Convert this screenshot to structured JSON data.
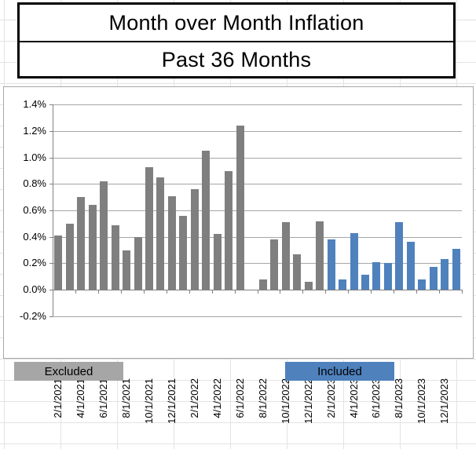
{
  "title": {
    "line1": "Month over Month Inflation",
    "line2": "Past 36 Months"
  },
  "legend": {
    "excluded_label": "Excluded",
    "included_label": "Included"
  },
  "colors": {
    "excluded_bar": "#7f7f7f",
    "included_bar": "#4f81bd",
    "legend_excluded_fill": "#a6a6a6",
    "legend_included_fill": "#4f81bd",
    "gridline": "#a6a6a6",
    "axis": "#808080"
  },
  "chart_data": {
    "type": "bar",
    "title": "Month over Month Inflation — Past 36 Months",
    "xlabel": "",
    "ylabel": "",
    "ylim": [
      -0.2,
      1.4
    ],
    "ytick_step": 0.2,
    "ytick_labels": [
      "1.4%",
      "1.2%",
      "1.0%",
      "0.8%",
      "0.6%",
      "0.4%",
      "0.2%",
      "0.0%",
      "-0.2%"
    ],
    "xtick_labels_shown": [
      "2/1/2021",
      "4/1/2021",
      "6/1/2021",
      "8/1/2021",
      "10/1/2021",
      "12/1/2021",
      "2/1/2022",
      "4/1/2022",
      "6/1/2022",
      "8/1/2022",
      "10/1/2022",
      "12/1/2022",
      "2/1/2023",
      "4/1/2023",
      "6/1/2023",
      "8/1/2023",
      "10/1/2023",
      "12/1/2023"
    ],
    "label_every_n_bars": 2,
    "grid": true,
    "legend_position": "below-as-cells",
    "categories": [
      "2/1/2021",
      "3/1/2021",
      "4/1/2021",
      "5/1/2021",
      "6/1/2021",
      "7/1/2021",
      "8/1/2021",
      "9/1/2021",
      "10/1/2021",
      "11/1/2021",
      "12/1/2021",
      "1/1/2022",
      "2/1/2022",
      "3/1/2022",
      "4/1/2022",
      "5/1/2022",
      "6/1/2022",
      "7/1/2022",
      "8/1/2022",
      "9/1/2022",
      "10/1/2022",
      "11/1/2022",
      "12/1/2022",
      "1/1/2023",
      "2/1/2023",
      "3/1/2023",
      "4/1/2023",
      "5/1/2023",
      "6/1/2023",
      "7/1/2023",
      "8/1/2023",
      "9/1/2023",
      "10/1/2023",
      "11/1/2023",
      "12/1/2023",
      "1/1/2024"
    ],
    "series": [
      {
        "name": "Excluded",
        "color": "#7f7f7f",
        "month_range": "2/1/2021 - 1/1/2023",
        "values": [
          0.41,
          0.5,
          0.7,
          0.64,
          0.82,
          0.49,
          0.3,
          0.4,
          0.93,
          0.85,
          0.71,
          0.56,
          0.76,
          1.05,
          0.42,
          0.9,
          1.24,
          0.0,
          0.08,
          0.38,
          0.51,
          0.27,
          0.06,
          0.52
        ]
      },
      {
        "name": "Included",
        "color": "#4f81bd",
        "month_range": "2/1/2023 - 1/1/2024",
        "values": [
          0.38,
          0.08,
          0.43,
          0.11,
          0.21,
          0.2,
          0.51,
          0.36,
          0.08,
          0.17,
          0.23,
          0.31
        ]
      }
    ],
    "values_unit": "percent"
  }
}
